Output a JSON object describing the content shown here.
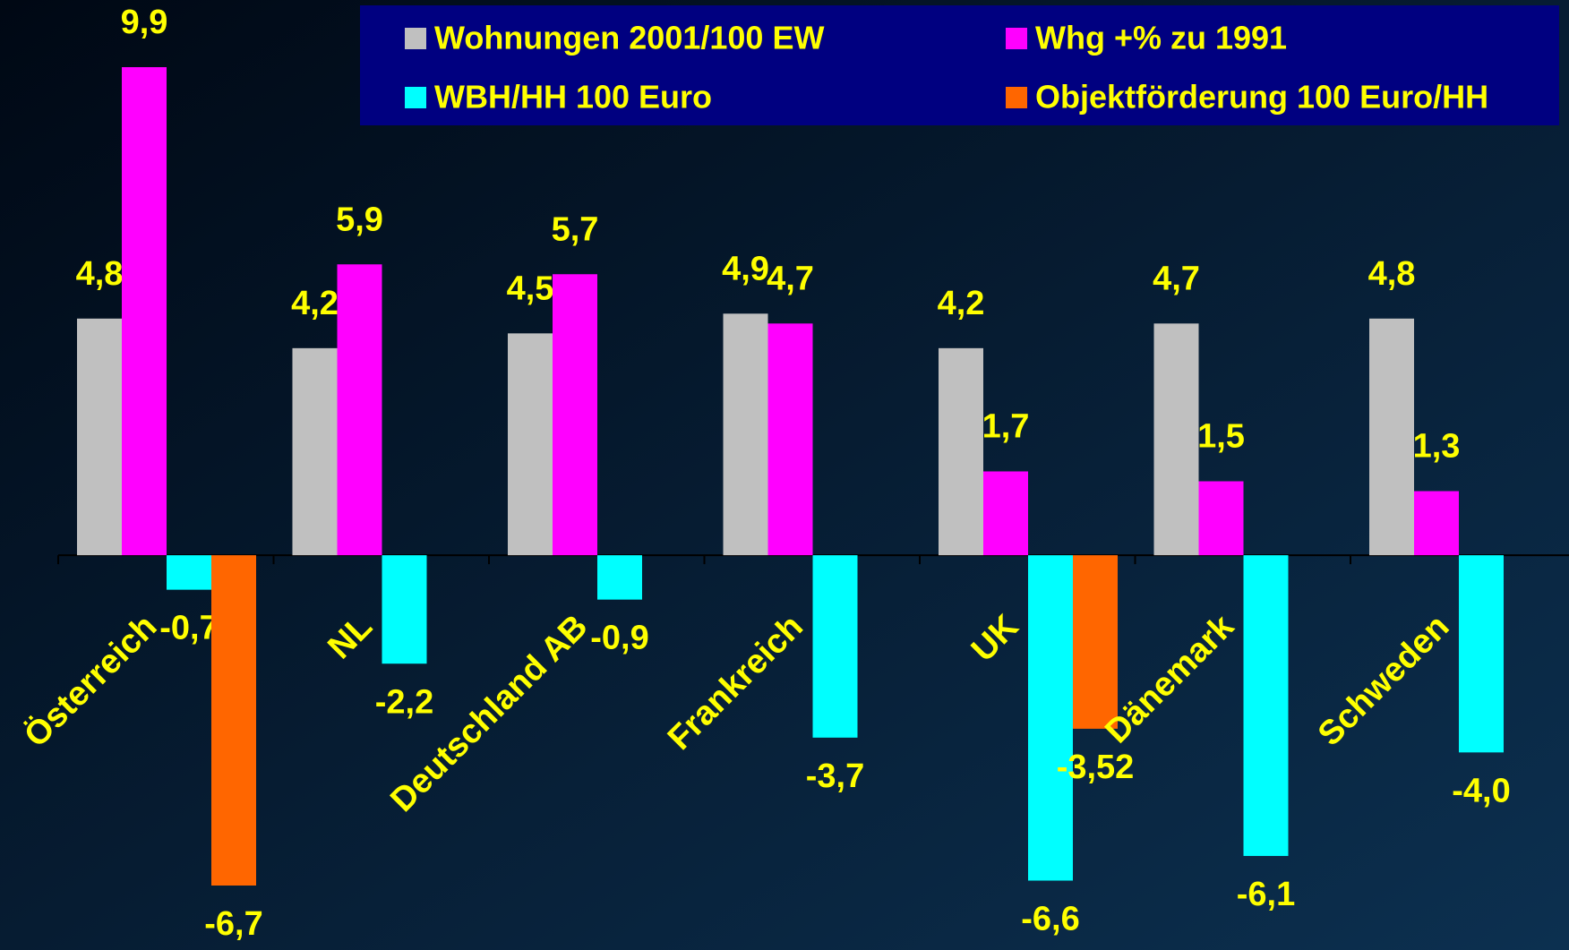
{
  "chart_data": {
    "type": "bar",
    "categories": [
      "Österreich",
      "NL",
      "Deutschland AB",
      "Frankreich",
      "UK",
      "Dänemark",
      "Schweden"
    ],
    "series": [
      {
        "name": "Wohnungen 2001/100 EW",
        "color": "#c0c0c0",
        "values": [
          4.8,
          4.2,
          4.5,
          4.9,
          4.2,
          4.7,
          4.8
        ],
        "value_labels": [
          "4,8",
          "4,2",
          "4,5",
          "4,9",
          "4,2",
          "4,7",
          "4,8"
        ]
      },
      {
        "name": "Whg +% zu 1991",
        "color": "#ff00ff",
        "values": [
          9.9,
          5.9,
          5.7,
          4.7,
          1.7,
          1.5,
          1.3
        ],
        "value_labels": [
          "9,9",
          "5,9",
          "5,7",
          "4,7",
          "1,7",
          "1,5",
          "1,3"
        ]
      },
      {
        "name": "WBH/HH 100 Euro",
        "color": "#00ffff",
        "values": [
          -0.7,
          -2.2,
          -0.9,
          -3.7,
          -6.6,
          -6.1,
          -4.0
        ],
        "value_labels": [
          "-0,7",
          "-2,2",
          "-0,9",
          "-3,7",
          "-6,6",
          "-6,1",
          "-4,0"
        ]
      },
      {
        "name": "Objektförderung 100 Euro/HH",
        "color": "#ff6600",
        "values": [
          -6.7,
          null,
          null,
          null,
          -3.52,
          null,
          null
        ],
        "value_labels": [
          "-6,7",
          null,
          null,
          null,
          "-3,52",
          null,
          null
        ]
      }
    ]
  }
}
